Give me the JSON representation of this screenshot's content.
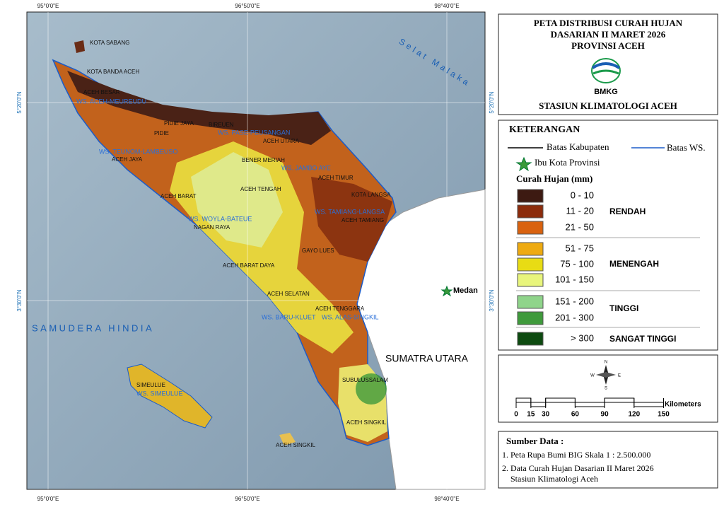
{
  "map": {
    "graticule": {
      "lon": [
        "95°0'0\"E",
        "96°50'0\"E",
        "98°40'0\"E"
      ],
      "lat": [
        "5°20'0\"N",
        "3°30'0\"N"
      ]
    },
    "places": [
      "KOTA SABANG",
      "KOTA BANDA ACEH",
      "ACEH BESAR",
      "PIDIE JAYA",
      "PIDIE",
      "BIREUEN",
      "ACEH UTARA",
      "ACEH JAYA",
      "BENER MERIAH",
      "ACEH TIMUR",
      "KOTA LANGSA",
      "ACEH BARAT",
      "ACEH TENGAH",
      "ACEH TAMIANG",
      "NAGAN RAYA",
      "GAYO LUES",
      "ACEH BARAT DAYA",
      "ACEH SELATAN",
      "ACEH TENGGARA",
      "SUBULUSSALAM",
      "SIMEULUE",
      "ACEH SINGKIL",
      "ACEH SINGKIL"
    ],
    "watersheds": [
      "WS. ACEH-MEUREUDU",
      "WS. PASE-PEUSANGAN",
      "WS. TEUNOM-LAMBEUSO",
      "WS. JAMBO AYE",
      "WS. TAMIANG-LANGSA",
      "WS. WOYLA-BATEUE",
      "WS. BARU-KLUET",
      "WS. ALAS-SINGKIL",
      "WS. SIMEULUE"
    ],
    "seas": [
      "Selat Malaka",
      "SAMUDERA HINDIA"
    ],
    "capital": "Medan",
    "neighbor": "SUMATRA UTARA"
  },
  "header": {
    "title": [
      "PETA DISTRIBUSI CURAH HUJAN",
      "DASARIAN II MARET 2026",
      "PROVINSI ACEH"
    ],
    "logo": "BMKG",
    "station": "STASIUN KLIMATOLOGI ACEH"
  },
  "legend": {
    "heading": "KETERANGAN",
    "boundary": "Batas Kabupaten",
    "watershed": "Batas WS.",
    "capital": "Ibu Kota Provinsi",
    "rain_title": "Curah Hujan (mm)",
    "classes": [
      {
        "label": "0 - 10",
        "color": "#3d1a12"
      },
      {
        "label": "11 - 20",
        "color": "#8c2c0c"
      },
      {
        "label": "21 - 50",
        "color": "#d9620f"
      },
      {
        "label": "51 - 75",
        "color": "#eeaa10"
      },
      {
        "label": "75 - 100",
        "color": "#e8dc14"
      },
      {
        "label": "101 - 150",
        "color": "#e8f57c"
      },
      {
        "label": "151 - 200",
        "color": "#8fd48a"
      },
      {
        "label": "201 - 300",
        "color": "#3f9a3c"
      },
      {
        "label": "> 300",
        "color": "#0d4a10"
      }
    ],
    "groups": [
      "RENDAH",
      "MENENGAH",
      "TINGGI",
      "SANGAT TINGGI"
    ]
  },
  "scale": {
    "ticks": [
      0,
      15,
      30,
      60,
      90,
      120,
      150
    ],
    "unit": "Kilometers",
    "compass": [
      "N",
      "E",
      "S",
      "W"
    ]
  },
  "source": {
    "heading": "Sumber Data :",
    "items": [
      "1. Peta Rupa Bumi BIG Skala 1 : 2.500.000",
      "2. Data Curah Hujan Dasarian II Maret 2026",
      "Stasiun Klimatologi Aceh"
    ]
  }
}
